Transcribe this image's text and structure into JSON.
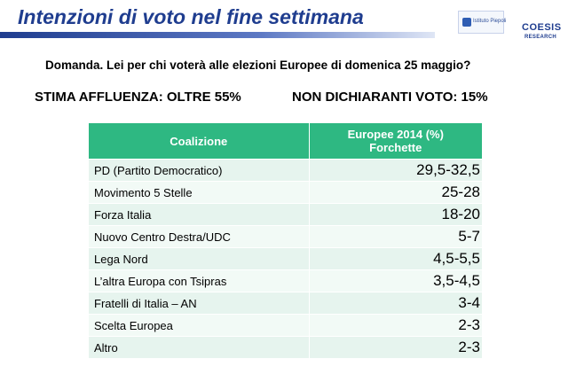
{
  "header": {
    "title": "Intenzioni di voto nel fine settimana",
    "logo_left_text": "Istituto Piepoli",
    "logo_right_line1": "COESIS",
    "logo_right_line2": "RESEARCH"
  },
  "question": "Domanda. Lei per chi voterà alle elezioni Europee di domenica 25 maggio?",
  "stats": {
    "affluenza": "STIMA AFFLUENZA: OLTRE 55%",
    "non_dichiaranti": "NON DICHIARANTI VOTO: 15%"
  },
  "table": {
    "headers": [
      "Coalizione",
      "Europee 2014 (%)",
      "Forchette"
    ],
    "rows": [
      {
        "name": "PD (Partito Democratico)",
        "value": "29,5-32,5"
      },
      {
        "name": "Movimento 5 Stelle",
        "value": "25-28"
      },
      {
        "name": "Forza Italia",
        "value": "18-20"
      },
      {
        "name": "Nuovo Centro Destra/UDC",
        "value": "5-7"
      },
      {
        "name": "Lega Nord",
        "value": "4,5-5,5"
      },
      {
        "name": "L’altra Europa con Tsipras",
        "value": "3,5-4,5"
      },
      {
        "name": "Fratelli di Italia – AN",
        "value": "3-4"
      },
      {
        "name": "Scelta Europea",
        "value": "2-3"
      },
      {
        "name": "Altro",
        "value": "2-3"
      }
    ]
  }
}
